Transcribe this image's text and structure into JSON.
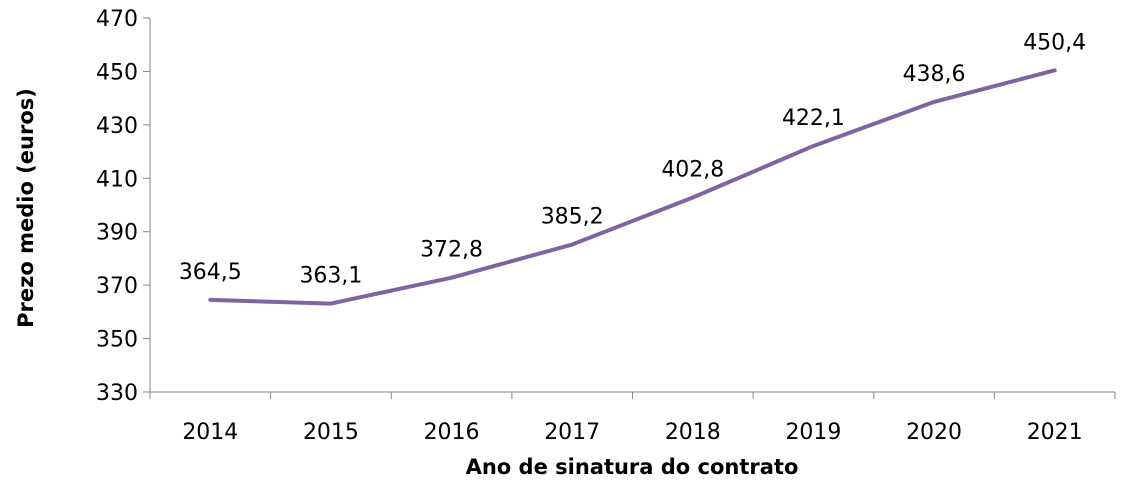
{
  "chart_data": {
    "type": "line",
    "title": "",
    "xlabel": "Ano de sinatura do contrato",
    "ylabel": "Prezo medio (euros)",
    "categories": [
      "2014",
      "2015",
      "2016",
      "2017",
      "2018",
      "2019",
      "2020",
      "2021"
    ],
    "series": [
      {
        "name": "Prezo medio",
        "values": [
          364.5,
          363.1,
          372.8,
          385.2,
          402.8,
          422.1,
          438.6,
          450.4
        ],
        "labels": [
          "364,5",
          "363,1",
          "372,8",
          "385,2",
          "402,8",
          "422,1",
          "438,6",
          "450,4"
        ],
        "color": "#8064A2"
      }
    ],
    "ylim": [
      330,
      470
    ],
    "yticks": [
      "330",
      "350",
      "370",
      "390",
      "410",
      "430",
      "450",
      "470"
    ],
    "grid": false,
    "legend": "none"
  }
}
